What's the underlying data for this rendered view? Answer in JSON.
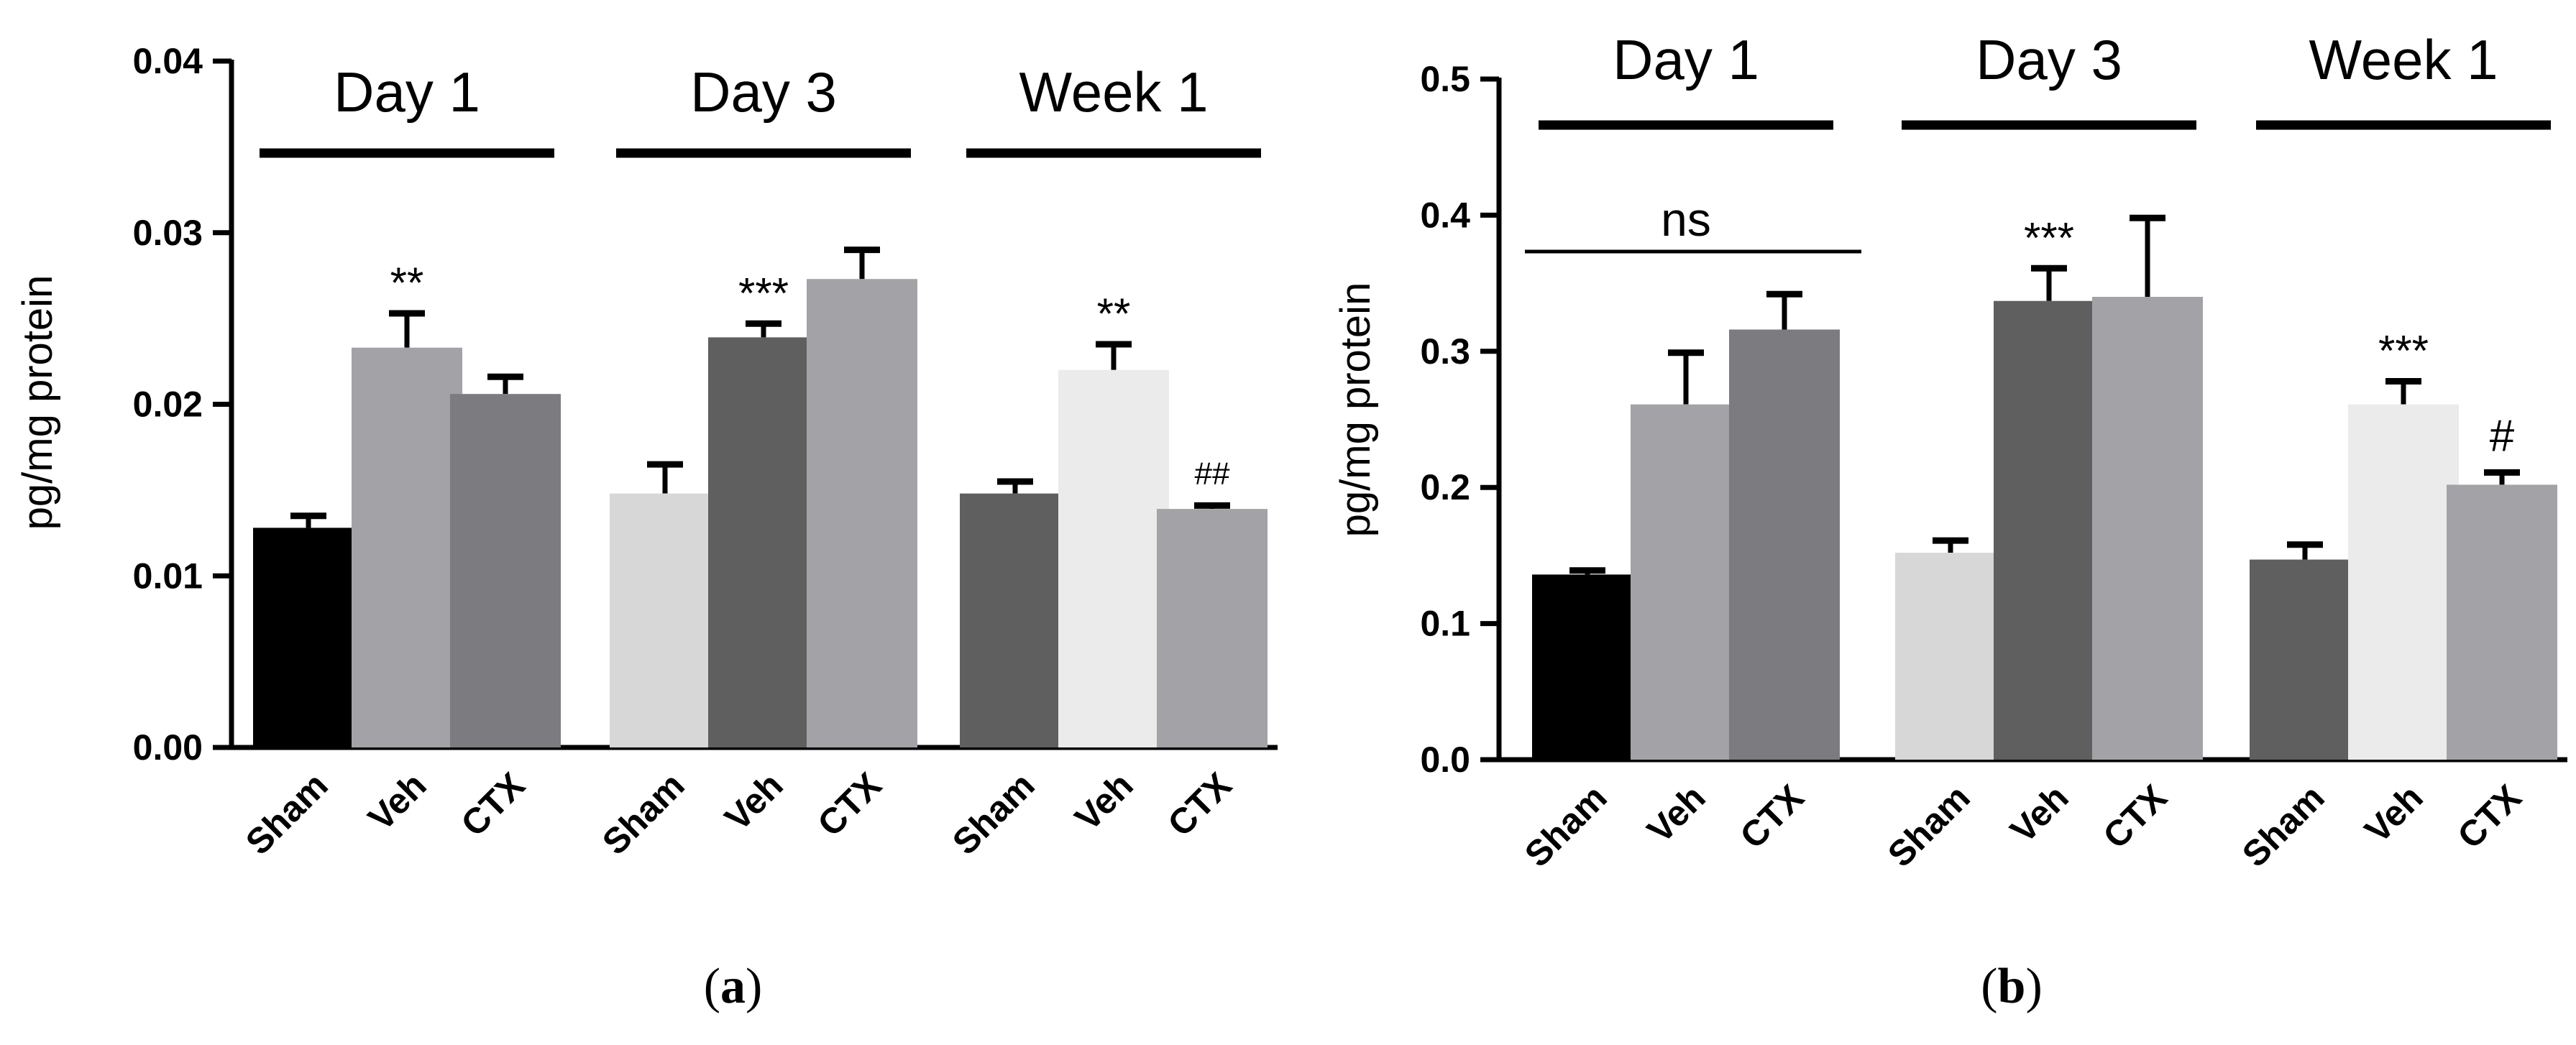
{
  "chart_data": [
    {
      "type": "bar",
      "panel_label": "(a)",
      "panel_letter": "a",
      "ylabel": "pg/mg protein",
      "ylim": [
        0,
        0.04
      ],
      "yticks": [
        0.0,
        0.01,
        0.02,
        0.03,
        0.04
      ],
      "ytick_labels": [
        "0.00",
        "0.01",
        "0.02",
        "0.03",
        "0.04"
      ],
      "groups": [
        {
          "title": "Day 1",
          "bars": [
            {
              "label": "Sham",
              "value": 0.0128,
              "error": 0.0007,
              "color": "#000000",
              "annotation": ""
            },
            {
              "label": "Veh",
              "value": 0.0233,
              "error": 0.002,
              "color": "#a3a3a7",
              "annotation": "**"
            },
            {
              "label": "CTX",
              "value": 0.0206,
              "error": 0.001,
              "color": "#7c7c80",
              "annotation": ""
            }
          ]
        },
        {
          "title": "Day 3",
          "bars": [
            {
              "label": "Sham",
              "value": 0.0148,
              "error": 0.0017,
              "color": "#d7d7d7",
              "annotation": ""
            },
            {
              "label": "Veh",
              "value": 0.0239,
              "error": 0.0008,
              "color": "#5f5f60",
              "annotation": "***"
            },
            {
              "label": "CTX",
              "value": 0.0273,
              "error": 0.0017,
              "color": "#a3a3a7",
              "annotation": ""
            }
          ]
        },
        {
          "title": "Week 1",
          "bars": [
            {
              "label": "Sham",
              "value": 0.0148,
              "error": 0.0007,
              "color": "#5f5f60",
              "annotation": ""
            },
            {
              "label": "Veh",
              "value": 0.022,
              "error": 0.0015,
              "color": "#ebebeb",
              "annotation": "**"
            },
            {
              "label": "CTX",
              "value": 0.0139,
              "error": 0.0002,
              "color": "#a3a3a7",
              "annotation": "##"
            }
          ]
        }
      ]
    },
    {
      "type": "bar",
      "panel_label": "(b)",
      "panel_letter": "b",
      "ylabel": "pg/mg protein",
      "ylim": [
        0,
        0.5
      ],
      "yticks": [
        0.0,
        0.1,
        0.2,
        0.3,
        0.4,
        0.5
      ],
      "ytick_labels": [
        "0.0",
        "0.1",
        "0.2",
        "0.3",
        "0.4",
        "0.5"
      ],
      "groups": [
        {
          "title": "Day 1",
          "bars": [
            {
              "label": "Sham",
              "value": 0.136,
              "error": 0.003,
              "color": "#000000",
              "annotation": ""
            },
            {
              "label": "Veh",
              "value": 0.261,
              "error": 0.038,
              "color": "#a3a3a7",
              "annotation": ""
            },
            {
              "label": "CTX",
              "value": 0.316,
              "error": 0.026,
              "color": "#7c7c80",
              "annotation": ""
            }
          ],
          "bracket_annotation": "ns"
        },
        {
          "title": "Day 3",
          "bars": [
            {
              "label": "Sham",
              "value": 0.152,
              "error": 0.009,
              "color": "#d7d7d7",
              "annotation": ""
            },
            {
              "label": "Veh",
              "value": 0.337,
              "error": 0.024,
              "color": "#5f5f60",
              "annotation": "***"
            },
            {
              "label": "CTX",
              "value": 0.34,
              "error": 0.058,
              "color": "#a3a3a7",
              "annotation": ""
            }
          ]
        },
        {
          "title": "Week 1",
          "bars": [
            {
              "label": "Sham",
              "value": 0.147,
              "error": 0.011,
              "color": "#5f5f60",
              "annotation": ""
            },
            {
              "label": "Veh",
              "value": 0.261,
              "error": 0.017,
              "color": "#ebebeb",
              "annotation": "***"
            },
            {
              "label": "CTX",
              "value": 0.202,
              "error": 0.009,
              "color": "#a3a3a7",
              "annotation": "#"
            }
          ]
        }
      ]
    }
  ]
}
